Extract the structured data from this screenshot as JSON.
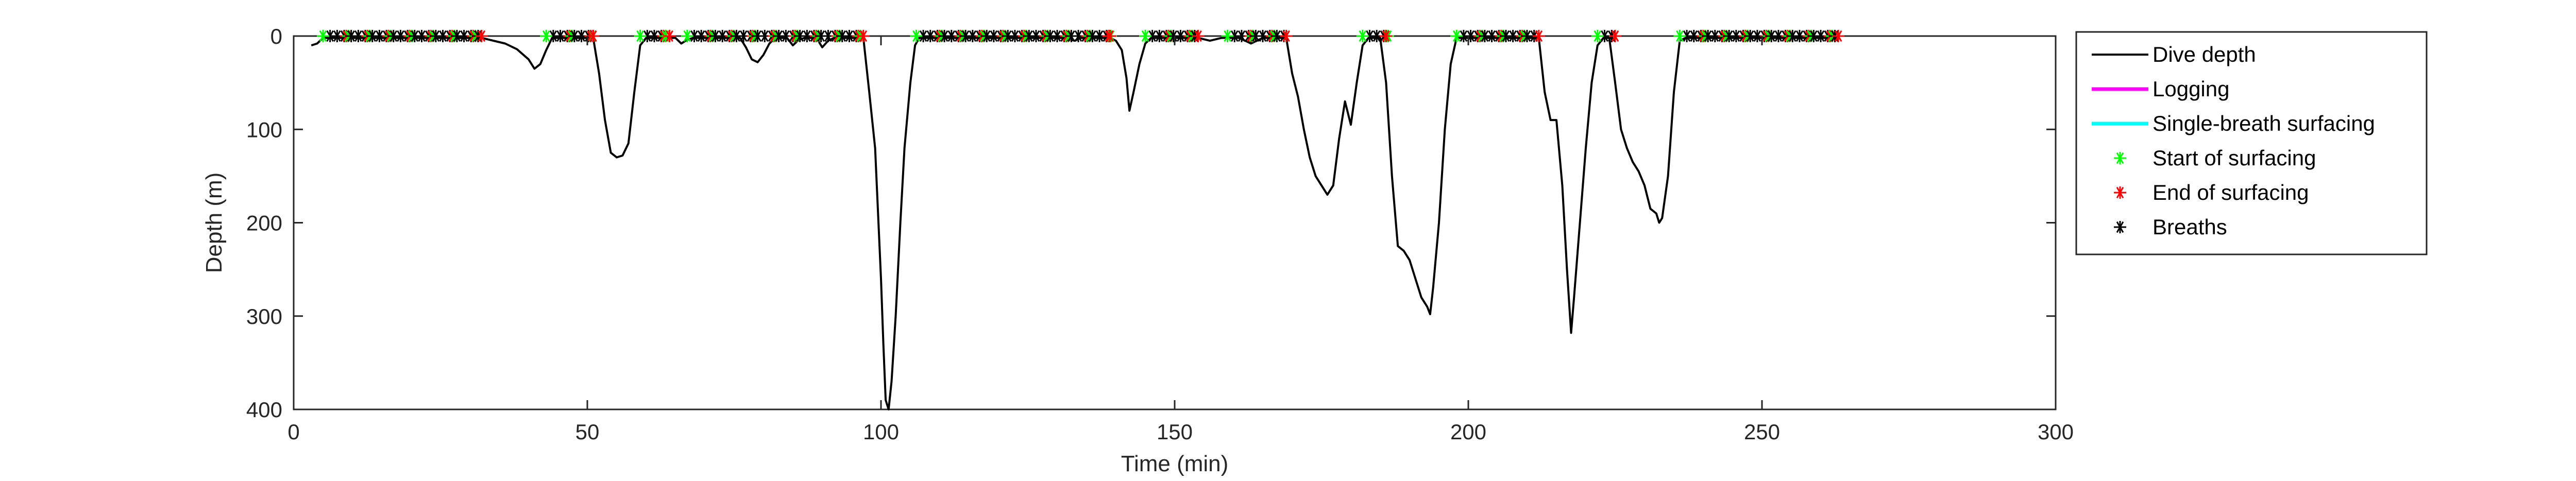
{
  "chart_data": {
    "type": "line",
    "title": "",
    "xlabel": "Time (min)",
    "ylabel": "Depth (m)",
    "xlim": [
      0,
      300
    ],
    "ylim": [
      0,
      400
    ],
    "y_reversed": true,
    "grid": false,
    "legend_position": "outside-right-top",
    "xticks": [
      0,
      50,
      100,
      150,
      200,
      250,
      300
    ],
    "yticks": [
      0,
      100,
      200,
      300,
      400
    ],
    "legend": [
      {
        "label": "Dive depth",
        "kind": "line",
        "color": "#000000"
      },
      {
        "label": "Logging",
        "kind": "line",
        "color": "#ff00ff"
      },
      {
        "label": "Single-breath surfacing",
        "kind": "line",
        "color": "#00ffff"
      },
      {
        "label": "Start of surfacing",
        "kind": "marker",
        "color": "#00ff00"
      },
      {
        "label": "End of surfacing",
        "kind": "marker",
        "color": "#ff0000"
      },
      {
        "label": "Breaths",
        "kind": "marker",
        "color": "#000000"
      }
    ],
    "series": [
      {
        "name": "Dive depth",
        "color": "#000000",
        "points": [
          [
            3,
            10
          ],
          [
            4,
            8
          ],
          [
            5,
            2
          ],
          [
            32,
            2
          ],
          [
            36,
            8
          ],
          [
            38,
            14
          ],
          [
            40,
            25
          ],
          [
            41,
            35
          ],
          [
            42,
            30
          ],
          [
            43,
            15
          ],
          [
            44,
            2
          ],
          [
            51,
            2
          ],
          [
            52,
            40
          ],
          [
            53,
            90
          ],
          [
            54,
            125
          ],
          [
            55,
            130
          ],
          [
            56,
            128
          ],
          [
            57,
            115
          ],
          [
            58,
            60
          ],
          [
            59,
            10
          ],
          [
            60,
            2
          ],
          [
            65,
            2
          ],
          [
            66,
            8
          ],
          [
            67,
            4
          ],
          [
            68,
            2
          ],
          [
            76,
            2
          ],
          [
            77,
            12
          ],
          [
            78,
            25
          ],
          [
            79,
            28
          ],
          [
            80,
            20
          ],
          [
            81,
            8
          ],
          [
            82,
            2
          ],
          [
            84,
            2
          ],
          [
            85,
            10
          ],
          [
            86,
            4
          ],
          [
            87,
            2
          ],
          [
            89,
            2
          ],
          [
            90,
            12
          ],
          [
            91,
            5
          ],
          [
            92,
            2
          ],
          [
            97,
            2
          ],
          [
            98,
            60
          ],
          [
            99,
            120
          ],
          [
            99.5,
            190
          ],
          [
            100,
            260
          ],
          [
            100.4,
            330
          ],
          [
            100.8,
            390
          ],
          [
            101.3,
            400
          ],
          [
            101.8,
            370
          ],
          [
            102.5,
            300
          ],
          [
            103.3,
            200
          ],
          [
            104,
            120
          ],
          [
            105,
            50
          ],
          [
            105.8,
            10
          ],
          [
            106.5,
            2
          ],
          [
            131,
            2
          ],
          [
            133,
            5
          ],
          [
            134,
            2
          ],
          [
            139,
            2
          ],
          [
            140,
            5
          ],
          [
            141,
            15
          ],
          [
            141.8,
            45
          ],
          [
            142.3,
            80
          ],
          [
            143,
            60
          ],
          [
            144,
            30
          ],
          [
            145,
            8
          ],
          [
            146,
            2
          ],
          [
            154,
            2
          ],
          [
            156,
            5
          ],
          [
            158,
            2
          ],
          [
            161,
            2
          ],
          [
            162,
            5
          ],
          [
            163,
            8
          ],
          [
            164,
            5
          ],
          [
            165,
            2
          ],
          [
            169,
            2
          ],
          [
            170,
            40
          ],
          [
            171,
            65
          ],
          [
            172,
            100
          ],
          [
            173,
            130
          ],
          [
            174,
            150
          ],
          [
            175,
            160
          ],
          [
            176,
            170
          ],
          [
            177,
            160
          ],
          [
            178,
            110
          ],
          [
            179,
            70
          ],
          [
            180,
            95
          ],
          [
            181,
            50
          ],
          [
            182,
            10
          ],
          [
            183,
            2
          ],
          [
            185,
            2
          ],
          [
            186,
            50
          ],
          [
            187,
            150
          ],
          [
            188,
            225
          ],
          [
            189,
            230
          ],
          [
            190,
            240
          ],
          [
            191,
            260
          ],
          [
            192,
            280
          ],
          [
            193,
            290
          ],
          [
            193.5,
            298
          ],
          [
            194,
            270
          ],
          [
            195,
            200
          ],
          [
            196,
            100
          ],
          [
            197,
            30
          ],
          [
            198,
            2
          ],
          [
            212,
            2
          ],
          [
            213,
            60
          ],
          [
            214,
            90
          ],
          [
            215,
            90
          ],
          [
            216,
            160
          ],
          [
            216.8,
            250
          ],
          [
            217.5,
            318
          ],
          [
            218,
            280
          ],
          [
            219,
            200
          ],
          [
            220,
            120
          ],
          [
            221,
            50
          ],
          [
            222,
            10
          ],
          [
            223,
            2
          ],
          [
            224,
            2
          ],
          [
            225,
            50
          ],
          [
            226,
            100
          ],
          [
            227,
            120
          ],
          [
            228,
            135
          ],
          [
            229,
            145
          ],
          [
            230,
            160
          ],
          [
            231,
            185
          ],
          [
            232,
            190
          ],
          [
            232.5,
            200
          ],
          [
            233,
            195
          ],
          [
            234,
            150
          ],
          [
            235,
            60
          ],
          [
            236,
            5
          ],
          [
            237,
            2
          ],
          [
            262,
            2
          ],
          [
            263,
            2
          ]
        ]
      }
    ],
    "surfacing_periods": [
      [
        5,
        32
      ],
      [
        43,
        51
      ],
      [
        59,
        64
      ],
      [
        67,
        97
      ],
      [
        106,
        139
      ],
      [
        145,
        154
      ],
      [
        159,
        169
      ],
      [
        182,
        186
      ],
      [
        198,
        212
      ],
      [
        222,
        225
      ],
      [
        236,
        263
      ]
    ],
    "breath_marker_spacing_min": 1.2
  }
}
